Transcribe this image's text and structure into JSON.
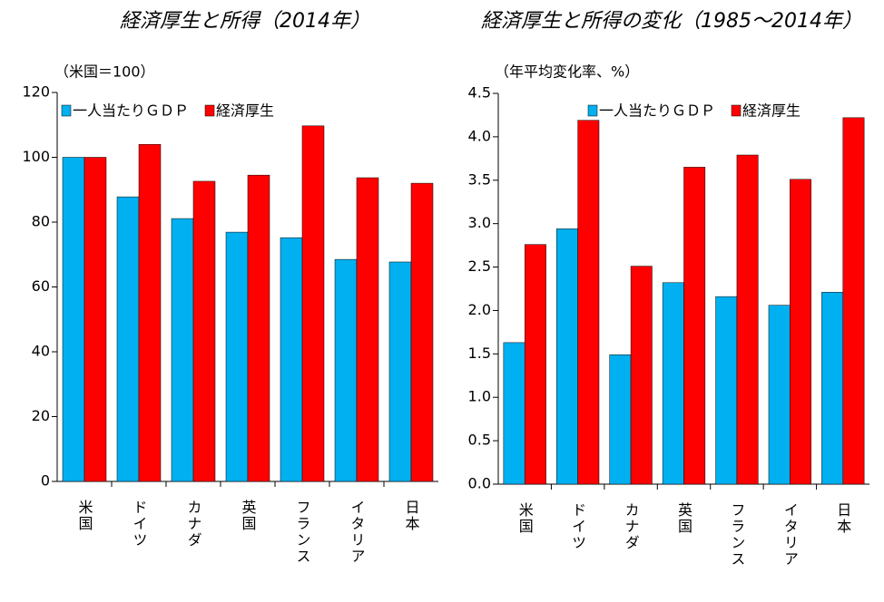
{
  "chart_data": [
    {
      "type": "bar",
      "title": "経済厚生と所得（2014年）",
      "y_label": "（米国＝100）",
      "categories": [
        "米国",
        "ドイツ",
        "カナダ",
        "英国",
        "フランス",
        "イタリア",
        "日本"
      ],
      "series": [
        {
          "name": "一人当たりＧＤＰ",
          "color": "#00b0f0",
          "values": [
            100,
            87.8,
            81.1,
            76.9,
            75.2,
            68.5,
            67.7
          ]
        },
        {
          "name": "経済厚生",
          "color": "#ff0000",
          "values": [
            100,
            104,
            92.6,
            94.5,
            109.7,
            93.7,
            92
          ]
        }
      ],
      "ylim": [
        0,
        120
      ],
      "yticks": [
        0,
        20,
        40,
        60,
        80,
        100,
        120
      ],
      "legend": "upper left"
    },
    {
      "type": "bar",
      "title": "経済厚生と所得の変化（1985～2014年）",
      "y_label": "（年平均変化率、%）",
      "categories": [
        "米国",
        "ドイツ",
        "カナダ",
        "英国",
        "フランス",
        "イタリア",
        "日本"
      ],
      "series": [
        {
          "name": "一人当たりＧＤＰ",
          "color": "#00b0f0",
          "values": [
            1.63,
            2.94,
            1.49,
            2.32,
            2.16,
            2.06,
            2.21
          ]
        },
        {
          "name": "経済厚生",
          "color": "#ff0000",
          "values": [
            2.76,
            4.19,
            2.51,
            3.65,
            3.79,
            3.51,
            4.22
          ]
        }
      ],
      "ylim": [
        0,
        4.5
      ],
      "yticks": [
        {
          "value": 0,
          "label": "0.0"
        },
        0.5,
        {
          "value": 1,
          "label": "1.0"
        },
        1.5,
        {
          "value": 2,
          "label": "2.0"
        },
        2.5,
        {
          "value": 3,
          "label": "3.0"
        },
        3.5,
        {
          "value": 4,
          "label": "4.0"
        },
        4.5
      ],
      "legend": "upper right"
    }
  ]
}
